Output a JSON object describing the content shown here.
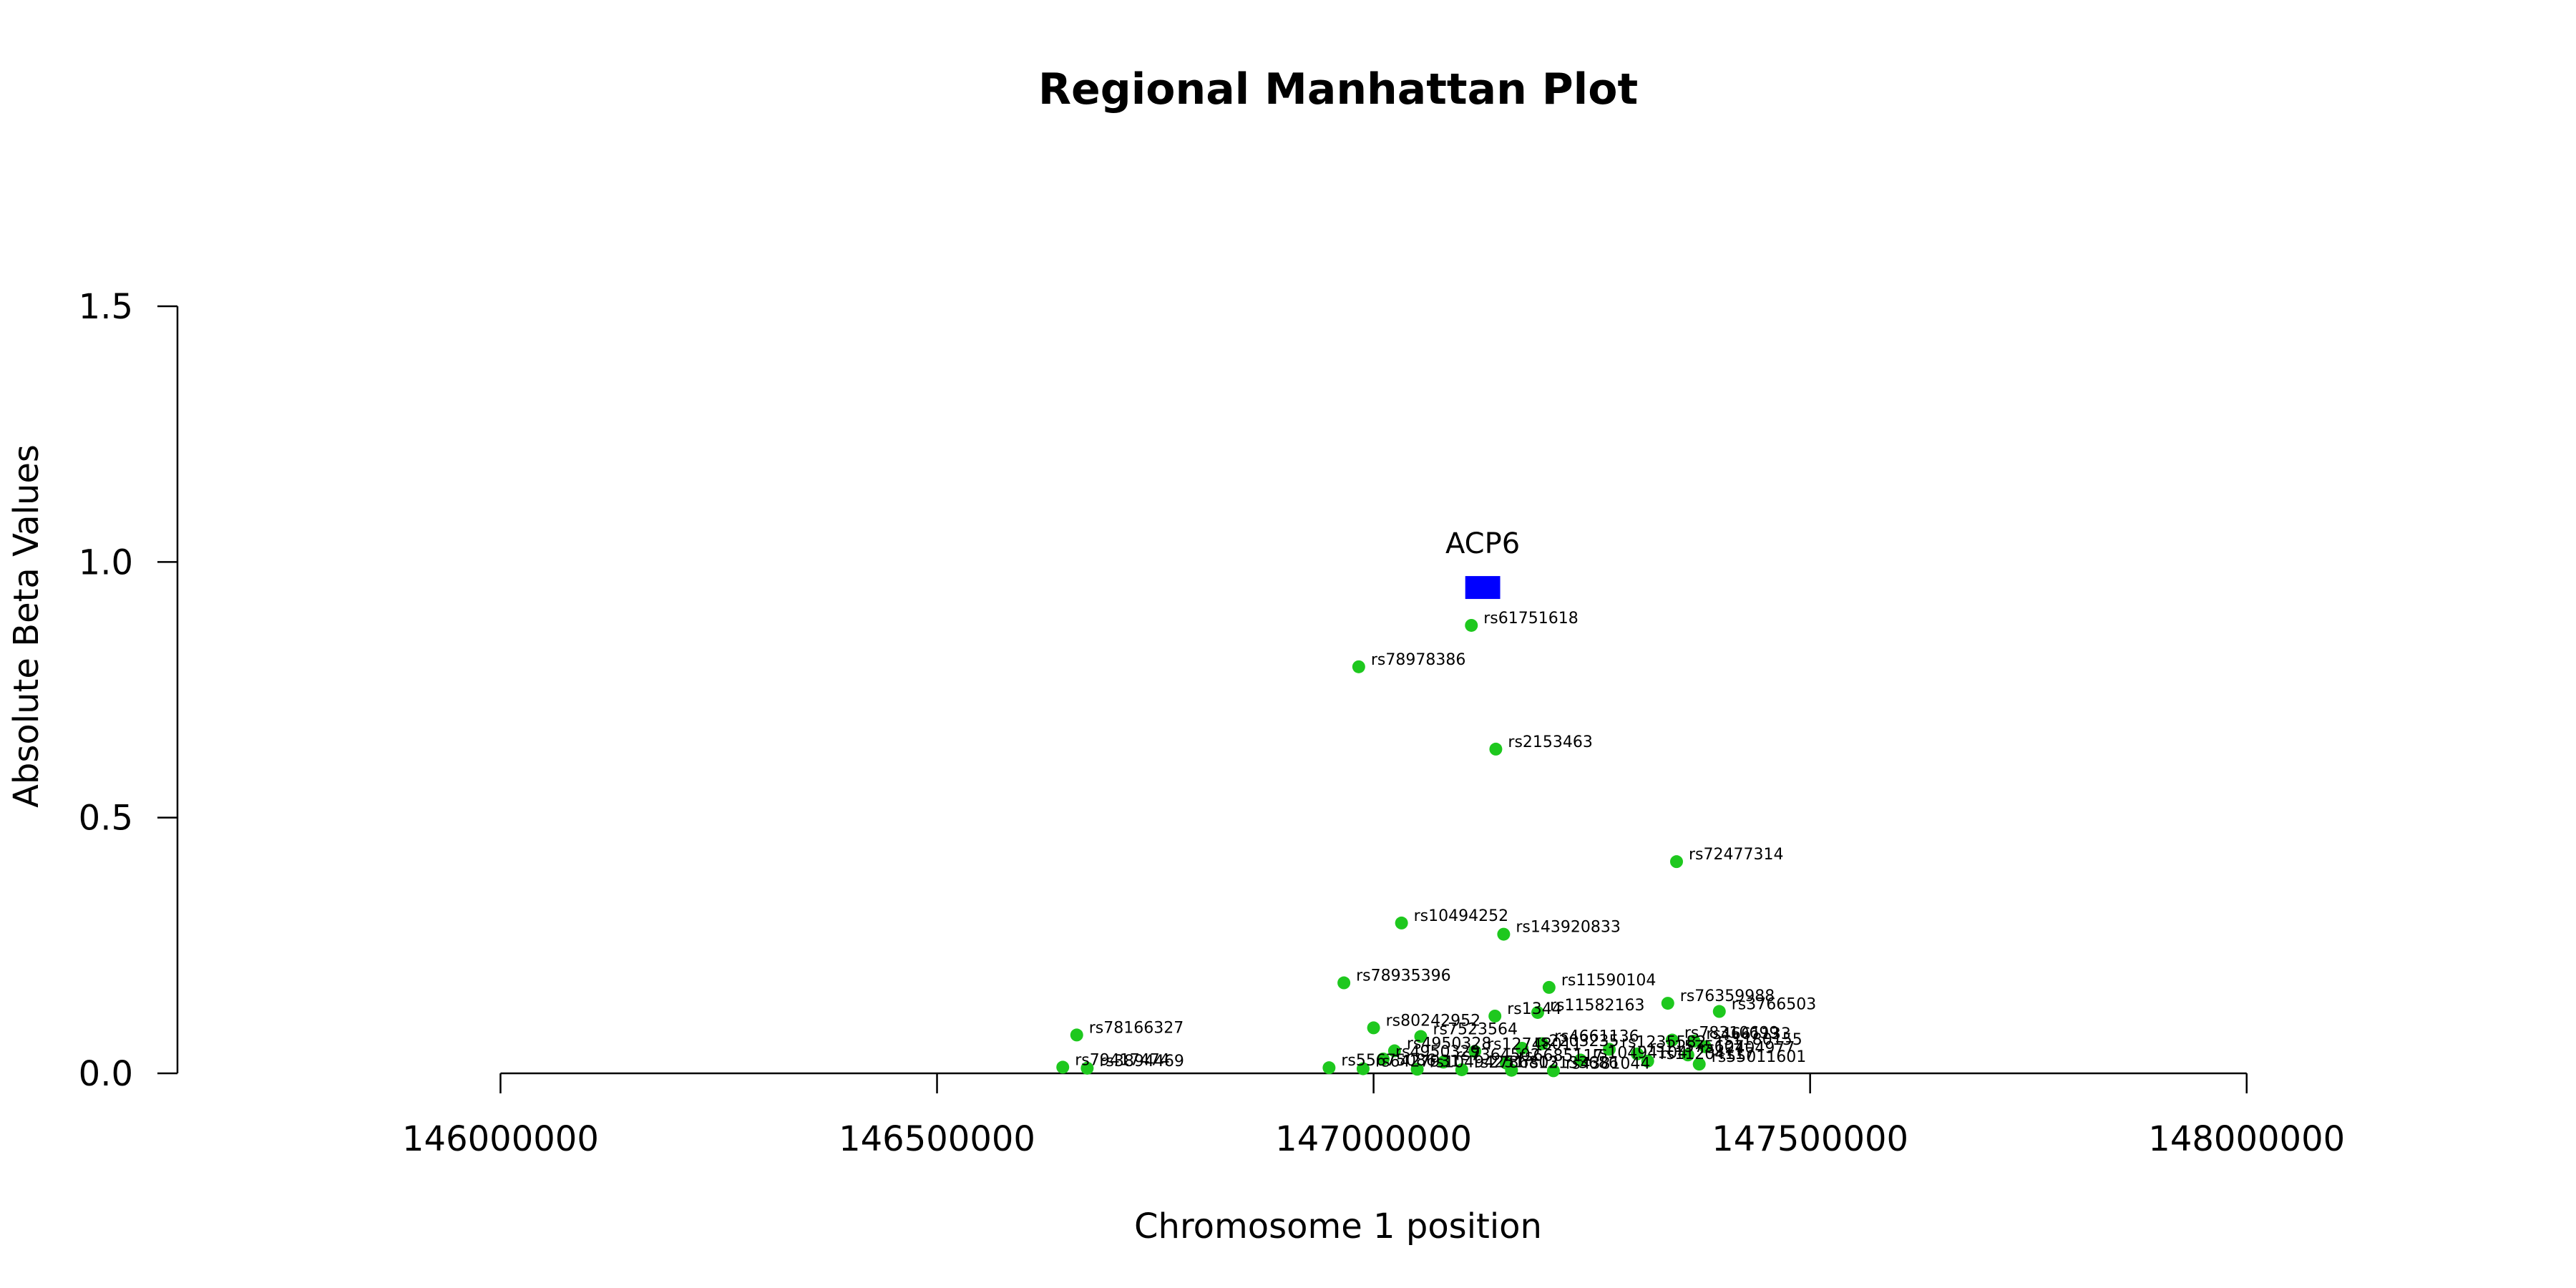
{
  "chart_data": {
    "type": "scatter",
    "title": "Regional Manhattan Plot",
    "xlabel": "Chromosome 1 position",
    "ylabel": "Absolute Beta Values",
    "xlim": [
      145630000,
      148410000
    ],
    "ylim": [
      0,
      1.5
    ],
    "xticks": [
      146000000,
      146500000,
      147000000,
      147500000,
      148000000
    ],
    "xtick_labels": [
      "146000000",
      "146500000",
      "147000000",
      "147500000",
      "148000000"
    ],
    "yticks": [
      0,
      0.5,
      1,
      1.5
    ],
    "ytick_labels": [
      "0.0",
      "0.5",
      "1.0",
      "1.5"
    ],
    "grid": false,
    "colors": {
      "snp": "#1ec81e",
      "gene": "#0000ff"
    },
    "gene": {
      "name": "ACP6",
      "start": 147105000,
      "end": 147145000,
      "y": 0.95
    },
    "snps": [
      {
        "id": "rs61751618",
        "x": 147112000,
        "y": 0.876
      },
      {
        "id": "rs78978386",
        "x": 146983000,
        "y": 0.795
      },
      {
        "id": "rs2153463",
        "x": 147140000,
        "y": 0.634
      },
      {
        "id": "rs72477314",
        "x": 147347000,
        "y": 0.414
      },
      {
        "id": "rs10494252",
        "x": 147032000,
        "y": 0.294
      },
      {
        "id": "rs143920833",
        "x": 147149000,
        "y": 0.272
      },
      {
        "id": "rs78935396",
        "x": 146966000,
        "y": 0.177
      },
      {
        "id": "rs11590104",
        "x": 147201000,
        "y": 0.168
      },
      {
        "id": "rs76359988",
        "x": 147337000,
        "y": 0.137
      },
      {
        "id": "rs3766503",
        "x": 147396000,
        "y": 0.121
      },
      {
        "id": "rs11582163",
        "x": 147188000,
        "y": 0.119
      },
      {
        "id": "rs1344",
        "x": 147139000,
        "y": 0.112
      },
      {
        "id": "rs80242952",
        "x": 147000000,
        "y": 0.089
      },
      {
        "id": "rs78166327",
        "x": 146660000,
        "y": 0.075
      },
      {
        "id": "rs7523564",
        "x": 147054000,
        "y": 0.072
      },
      {
        "id": "rs78310699",
        "x": 147342000,
        "y": 0.065
      },
      {
        "id": "rs4661133",
        "x": 147367000,
        "y": 0.063
      },
      {
        "id": "rs4661136",
        "x": 147193000,
        "y": 0.058
      },
      {
        "id": "rs1180155",
        "x": 147380000,
        "y": 0.052
      },
      {
        "id": "rs2203235",
        "x": 147170000,
        "y": 0.049
      },
      {
        "id": "rs1235582",
        "x": 147270000,
        "y": 0.047
      },
      {
        "id": "rs4950328",
        "x": 147024000,
        "y": 0.044
      },
      {
        "id": "rs12748011",
        "x": 147116000,
        "y": 0.043
      },
      {
        "id": "rs11575607",
        "x": 147302000,
        "y": 0.038
      },
      {
        "id": "rs12404977",
        "x": 147360000,
        "y": 0.036
      },
      {
        "id": "rs4950329",
        "x": 147011000,
        "y": 0.028
      },
      {
        "id": "rs10494104",
        "x": 147237000,
        "y": 0.026
      },
      {
        "id": "rs11204117",
        "x": 147314000,
        "y": 0.024
      },
      {
        "id": "rs7364502",
        "x": 147080000,
        "y": 0.022
      },
      {
        "id": "rs6685117",
        "x": 147152000,
        "y": 0.02
      },
      {
        "id": "rs55011601",
        "x": 147373000,
        "y": 0.018
      },
      {
        "id": "rs79417474",
        "x": 146644000,
        "y": 0.012
      },
      {
        "id": "rs3894469",
        "x": 146672000,
        "y": 0.01
      },
      {
        "id": "rs55675086",
        "x": 146949000,
        "y": 0.011
      },
      {
        "id": "rs6427931",
        "x": 146988000,
        "y": 0.009
      },
      {
        "id": "rs10494251",
        "x": 147050000,
        "y": 0.008
      },
      {
        "id": "rs2786803",
        "x": 147101000,
        "y": 0.007
      },
      {
        "id": "rs12133686",
        "x": 147158000,
        "y": 0.006
      },
      {
        "id": "rs4381044",
        "x": 147206000,
        "y": 0.005
      }
    ]
  }
}
